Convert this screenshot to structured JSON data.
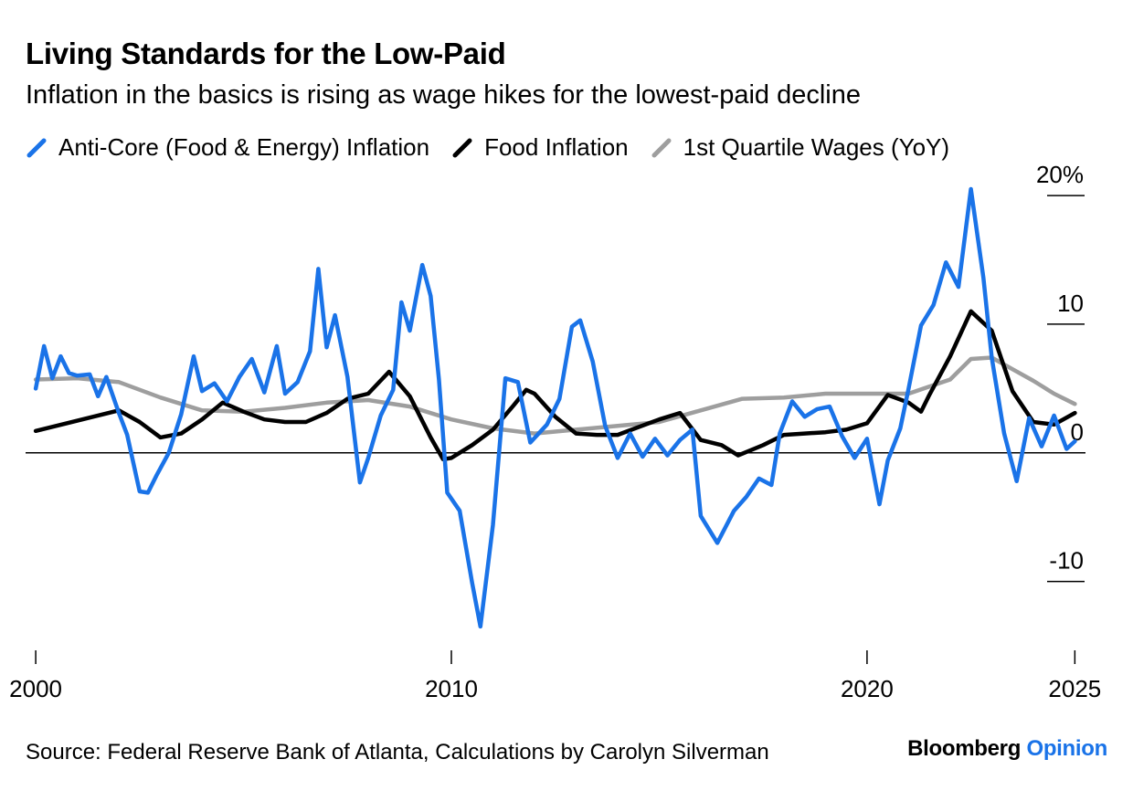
{
  "title": "Living Standards for the Low-Paid",
  "subtitle": "Inflation in the basics is rising as wage hikes for the lowest-paid decline",
  "source": "Source: Federal Reserve Bank of Atlanta, Calculations by Carolyn Silverman",
  "brand": {
    "name": "Bloomberg",
    "accent": "Opinion",
    "accent_color": "#1a73e8"
  },
  "chart_data": {
    "type": "line",
    "xlim": [
      1999.8,
      2025.3
    ],
    "ylim": [
      -14.5,
      21
    ],
    "x_ticks": [
      {
        "value": 2000,
        "label": "2000"
      },
      {
        "value": 2010,
        "label": "2010"
      },
      {
        "value": 2020,
        "label": "2020"
      },
      {
        "value": 2025,
        "label": "2025"
      }
    ],
    "y_ticks": [
      {
        "value": 20,
        "label": "20%"
      },
      {
        "value": 10,
        "label": "10"
      },
      {
        "value": 0,
        "label": "0"
      },
      {
        "value": -10,
        "label": "-10"
      }
    ],
    "series": [
      {
        "name": "1st Quartile Wages (YoY)",
        "color": "#9e9e9e",
        "points": [
          [
            2000.0,
            5.7
          ],
          [
            2001.0,
            5.8
          ],
          [
            2002.0,
            5.5
          ],
          [
            2003.0,
            4.3
          ],
          [
            2004.0,
            3.3
          ],
          [
            2005.0,
            3.2
          ],
          [
            2006.0,
            3.5
          ],
          [
            2007.0,
            3.9
          ],
          [
            2008.0,
            4.1
          ],
          [
            2009.0,
            3.6
          ],
          [
            2010.0,
            2.6
          ],
          [
            2011.0,
            1.9
          ],
          [
            2012.0,
            1.5
          ],
          [
            2013.0,
            1.8
          ],
          [
            2014.0,
            2.1
          ],
          [
            2015.0,
            2.4
          ],
          [
            2016.0,
            3.3
          ],
          [
            2017.0,
            4.2
          ],
          [
            2018.0,
            4.3
          ],
          [
            2019.0,
            4.6
          ],
          [
            2020.0,
            4.6
          ],
          [
            2021.0,
            4.6
          ],
          [
            2022.0,
            5.7
          ],
          [
            2022.5,
            7.3
          ],
          [
            2023.0,
            7.4
          ],
          [
            2023.5,
            6.5
          ],
          [
            2024.0,
            5.6
          ],
          [
            2024.5,
            4.6
          ],
          [
            2025.0,
            3.8
          ]
        ]
      },
      {
        "name": "Food Inflation",
        "color": "#000000",
        "points": [
          [
            2000.0,
            1.7
          ],
          [
            2001.0,
            2.5
          ],
          [
            2002.0,
            3.3
          ],
          [
            2002.5,
            2.4
          ],
          [
            2003.0,
            1.2
          ],
          [
            2003.5,
            1.5
          ],
          [
            2004.0,
            2.6
          ],
          [
            2004.5,
            3.9
          ],
          [
            2005.0,
            3.2
          ],
          [
            2005.5,
            2.6
          ],
          [
            2006.0,
            2.4
          ],
          [
            2006.5,
            2.4
          ],
          [
            2007.0,
            3.1
          ],
          [
            2007.5,
            4.2
          ],
          [
            2008.0,
            4.6
          ],
          [
            2008.5,
            6.3
          ],
          [
            2009.0,
            4.4
          ],
          [
            2009.5,
            1.2
          ],
          [
            2009.8,
            -0.5
          ],
          [
            2010.0,
            -0.4
          ],
          [
            2010.5,
            0.6
          ],
          [
            2011.0,
            1.8
          ],
          [
            2011.5,
            3.7
          ],
          [
            2011.8,
            4.9
          ],
          [
            2012.0,
            4.6
          ],
          [
            2012.5,
            2.8
          ],
          [
            2013.0,
            1.5
          ],
          [
            2013.5,
            1.4
          ],
          [
            2014.0,
            1.4
          ],
          [
            2014.5,
            2.0
          ],
          [
            2015.0,
            2.6
          ],
          [
            2015.5,
            3.1
          ],
          [
            2016.0,
            1.0
          ],
          [
            2016.5,
            0.6
          ],
          [
            2016.9,
            -0.2
          ],
          [
            2017.5,
            0.6
          ],
          [
            2018.0,
            1.4
          ],
          [
            2018.5,
            1.5
          ],
          [
            2019.0,
            1.6
          ],
          [
            2019.5,
            1.8
          ],
          [
            2020.0,
            2.3
          ],
          [
            2020.5,
            4.5
          ],
          [
            2021.0,
            3.9
          ],
          [
            2021.3,
            3.2
          ],
          [
            2021.5,
            4.5
          ],
          [
            2022.0,
            7.5
          ],
          [
            2022.5,
            11.0
          ],
          [
            2023.0,
            9.5
          ],
          [
            2023.5,
            4.8
          ],
          [
            2024.0,
            2.4
          ],
          [
            2024.5,
            2.2
          ],
          [
            2025.0,
            3.1
          ]
        ]
      },
      {
        "name": "Anti-Core (Food & Energy) Inflation",
        "color": "#1a73e8",
        "points": [
          [
            2000.0,
            5.0
          ],
          [
            2000.2,
            8.3
          ],
          [
            2000.4,
            5.8
          ],
          [
            2000.6,
            7.5
          ],
          [
            2000.8,
            6.2
          ],
          [
            2001.0,
            6.0
          ],
          [
            2001.3,
            6.1
          ],
          [
            2001.5,
            4.4
          ],
          [
            2001.7,
            5.9
          ],
          [
            2002.0,
            3.1
          ],
          [
            2002.2,
            1.4
          ],
          [
            2002.5,
            -3.0
          ],
          [
            2002.7,
            -3.1
          ],
          [
            2002.9,
            -1.8
          ],
          [
            2003.2,
            0.0
          ],
          [
            2003.5,
            3.0
          ],
          [
            2003.8,
            7.5
          ],
          [
            2004.0,
            4.8
          ],
          [
            2004.3,
            5.4
          ],
          [
            2004.6,
            4.0
          ],
          [
            2004.9,
            5.9
          ],
          [
            2005.2,
            7.3
          ],
          [
            2005.5,
            4.7
          ],
          [
            2005.8,
            8.3
          ],
          [
            2006.0,
            4.6
          ],
          [
            2006.3,
            5.5
          ],
          [
            2006.6,
            7.9
          ],
          [
            2006.8,
            14.3
          ],
          [
            2007.0,
            8.2
          ],
          [
            2007.2,
            10.7
          ],
          [
            2007.5,
            5.9
          ],
          [
            2007.8,
            -2.3
          ],
          [
            2008.0,
            -0.4
          ],
          [
            2008.3,
            2.9
          ],
          [
            2008.6,
            4.9
          ],
          [
            2008.8,
            11.7
          ],
          [
            2009.0,
            9.5
          ],
          [
            2009.3,
            14.6
          ],
          [
            2009.5,
            12.2
          ],
          [
            2009.7,
            5.7
          ],
          [
            2009.9,
            -3.1
          ],
          [
            2010.2,
            -4.5
          ],
          [
            2010.5,
            -10.1
          ],
          [
            2010.7,
            -13.5
          ],
          [
            2011.0,
            -5.6
          ],
          [
            2011.3,
            5.8
          ],
          [
            2011.6,
            5.5
          ],
          [
            2011.9,
            0.8
          ],
          [
            2012.3,
            2.2
          ],
          [
            2012.6,
            4.2
          ],
          [
            2012.9,
            9.8
          ],
          [
            2013.1,
            10.3
          ],
          [
            2013.4,
            7.1
          ],
          [
            2013.7,
            2.1
          ],
          [
            2014.0,
            -0.4
          ],
          [
            2014.3,
            1.5
          ],
          [
            2014.6,
            -0.3
          ],
          [
            2014.9,
            1.1
          ],
          [
            2015.2,
            -0.2
          ],
          [
            2015.5,
            1.0
          ],
          [
            2015.8,
            1.8
          ],
          [
            2016.0,
            -4.9
          ],
          [
            2016.4,
            -7.0
          ],
          [
            2016.8,
            -4.5
          ],
          [
            2017.1,
            -3.4
          ],
          [
            2017.4,
            -2.0
          ],
          [
            2017.7,
            -2.5
          ],
          [
            2017.9,
            1.5
          ],
          [
            2018.2,
            4.0
          ],
          [
            2018.5,
            2.8
          ],
          [
            2018.8,
            3.4
          ],
          [
            2019.1,
            3.6
          ],
          [
            2019.4,
            1.3
          ],
          [
            2019.7,
            -0.4
          ],
          [
            2020.0,
            1.1
          ],
          [
            2020.3,
            -4.0
          ],
          [
            2020.5,
            -0.6
          ],
          [
            2020.8,
            1.9
          ],
          [
            2021.0,
            5.0
          ],
          [
            2021.3,
            9.9
          ],
          [
            2021.6,
            11.5
          ],
          [
            2021.9,
            14.8
          ],
          [
            2022.2,
            12.9
          ],
          [
            2022.5,
            20.5
          ],
          [
            2022.8,
            13.6
          ],
          [
            2023.0,
            7.4
          ],
          [
            2023.3,
            1.5
          ],
          [
            2023.6,
            -2.2
          ],
          [
            2023.9,
            2.7
          ],
          [
            2024.2,
            0.5
          ],
          [
            2024.5,
            2.9
          ],
          [
            2024.8,
            0.3
          ],
          [
            2025.0,
            0.9
          ]
        ]
      }
    ]
  }
}
